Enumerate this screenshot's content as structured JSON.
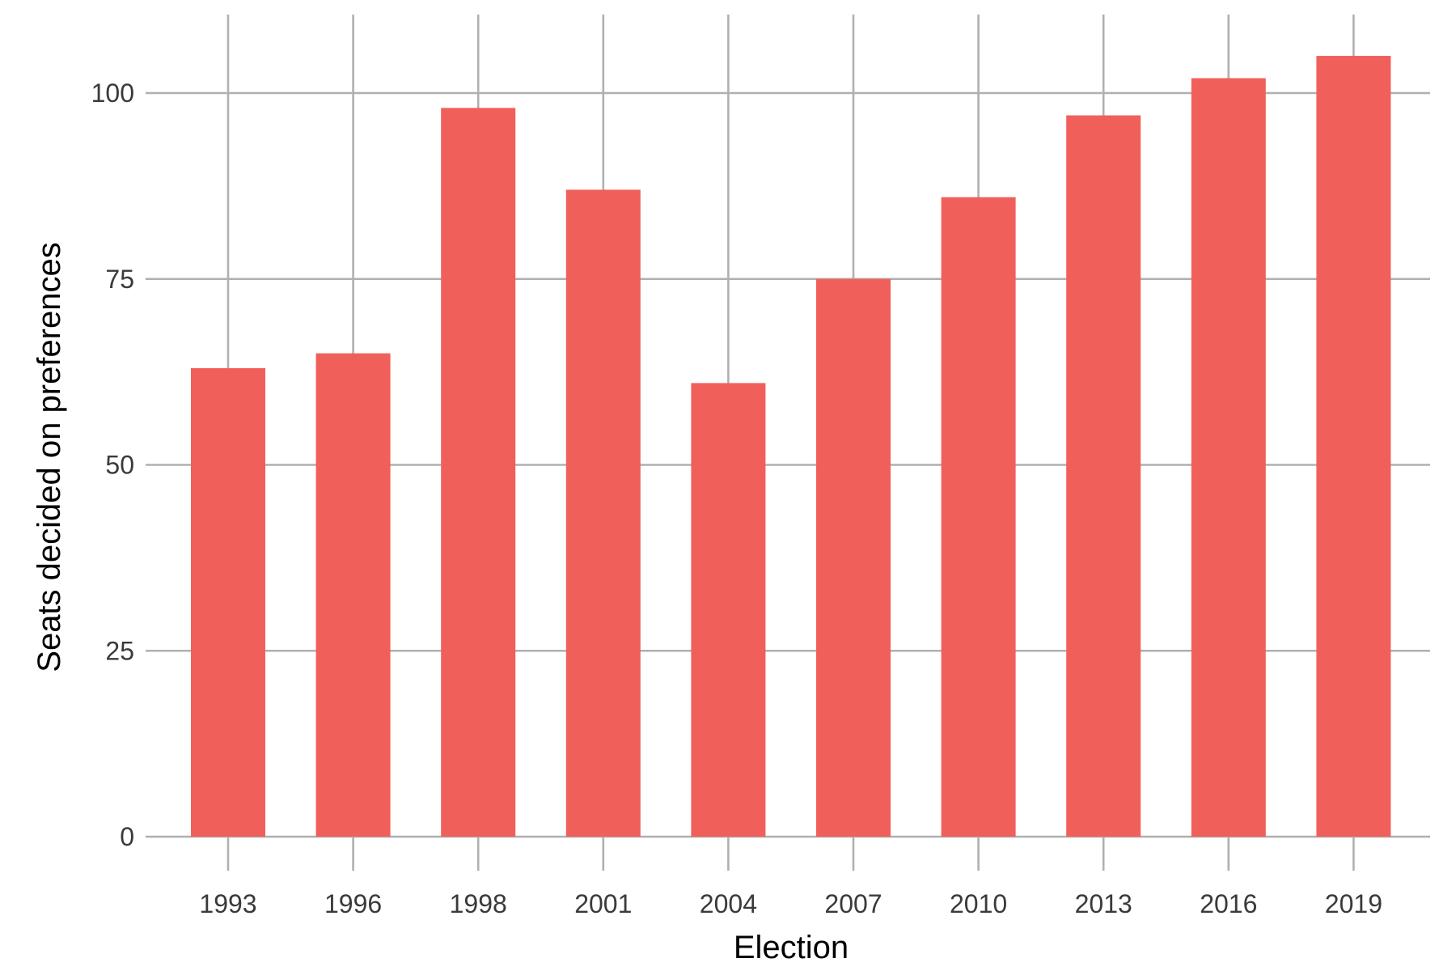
{
  "chart_data": {
    "type": "bar",
    "title": "",
    "xlabel": "Election",
    "ylabel": "Seats decided on preferences",
    "categories": [
      "1993",
      "1996",
      "1998",
      "2001",
      "2004",
      "2007",
      "2010",
      "2013",
      "2016",
      "2019"
    ],
    "values": [
      63,
      65,
      98,
      87,
      61,
      75,
      86,
      97,
      102,
      105
    ],
    "ylim": [
      0,
      110
    ],
    "yticks": [
      0,
      25,
      50,
      75,
      100
    ],
    "grid": true,
    "legend": "none",
    "bar_color": "#F15F5B",
    "grid_color": "#B0B0B0"
  }
}
